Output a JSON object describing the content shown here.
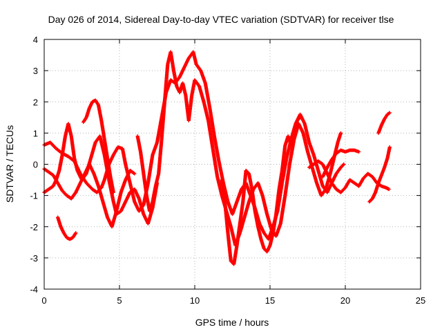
{
  "chart_data": {
    "type": "scatter",
    "title": "Day 026 of 2014, Sidereal Day-to-day VTEC variation (SDTVAR) for receiver tlse",
    "xlabel": "GPS time / hours",
    "ylabel": "SDTVAR / TECUs",
    "xlim": [
      0,
      25
    ],
    "ylim": [
      -4,
      4
    ],
    "xticks": [
      "0",
      "5",
      "10",
      "15",
      "20",
      "25"
    ],
    "yticks": [
      "4",
      "3",
      "2",
      "1",
      "0",
      "-1",
      "-2",
      "-3",
      "-4"
    ],
    "grid": true,
    "marker": "+",
    "series": [
      {
        "name": "SDTVAR",
        "color": "#ff0000",
        "tracks": [
          [
            [
              0,
              0.62
            ],
            [
              0.4,
              0.7
            ],
            [
              0.8,
              0.5
            ],
            [
              1.2,
              0.35
            ],
            [
              1.6,
              0.25
            ],
            [
              2.0,
              0.1
            ],
            [
              2.4,
              -0.3
            ],
            [
              2.8,
              -0.6
            ],
            [
              3.2,
              -0.8
            ],
            [
              3.5,
              -0.9
            ],
            [
              3.8,
              -0.75
            ],
            [
              4.0,
              -0.5
            ],
            [
              4.3,
              0.0
            ],
            [
              4.6,
              0.3
            ],
            [
              4.9,
              0.55
            ],
            [
              5.2,
              0.5
            ],
            [
              5.4,
              0.0
            ],
            [
              5.7,
              -0.6
            ],
            [
              6.0,
              -1.2
            ],
            [
              6.3,
              -1.5
            ],
            [
              6.6,
              -1.3
            ],
            [
              6.9,
              -0.6
            ],
            [
              7.2,
              0.3
            ],
            [
              7.5,
              0.7
            ],
            [
              7.8,
              1.5
            ],
            [
              8.1,
              2.3
            ],
            [
              8.4,
              2.7
            ],
            [
              8.7,
              2.6
            ],
            [
              9.0,
              2.8
            ],
            [
              9.3,
              3.1
            ],
            [
              9.6,
              3.4
            ],
            [
              9.9,
              3.6
            ],
            [
              10.1,
              3.2
            ],
            [
              10.4,
              3.0
            ],
            [
              10.7,
              2.6
            ],
            [
              11.0,
              1.8
            ],
            [
              11.3,
              0.9
            ],
            [
              11.6,
              0.1
            ],
            [
              11.9,
              -0.6
            ],
            [
              12.2,
              -1.2
            ],
            [
              12.5,
              -1.6
            ],
            [
              12.8,
              -1.2
            ],
            [
              13.1,
              -0.8
            ],
            [
              13.4,
              -0.6
            ],
            [
              13.7,
              -1.0
            ],
            [
              14.0,
              -1.4
            ],
            [
              14.3,
              -1.9
            ],
            [
              14.6,
              -2.2
            ],
            [
              14.9,
              -2.4
            ],
            [
              15.2,
              -2.0
            ],
            [
              15.5,
              -1.5
            ],
            [
              15.8,
              -0.6
            ],
            [
              16.1,
              0.2
            ],
            [
              16.4,
              0.8
            ],
            [
              16.7,
              1.3
            ],
            [
              17.0,
              1.6
            ],
            [
              17.3,
              1.3
            ],
            [
              17.6,
              0.7
            ],
            [
              17.9,
              0.3
            ],
            [
              18.2,
              -0.2
            ],
            [
              18.5,
              -0.7
            ],
            [
              18.8,
              -0.9
            ],
            [
              19.1,
              -0.6
            ],
            [
              19.4,
              -0.3
            ],
            [
              19.7,
              -0.1
            ],
            [
              19.9,
              0.0
            ]
          ],
          [
            [
              0,
              -0.9
            ],
            [
              0.3,
              -0.8
            ],
            [
              0.6,
              -0.7
            ],
            [
              0.8,
              -0.5
            ],
            [
              1.0,
              -0.2
            ],
            [
              1.2,
              0.3
            ],
            [
              1.4,
              0.9
            ],
            [
              1.6,
              1.3
            ],
            [
              1.8,
              0.9
            ],
            [
              2.0,
              0.2
            ],
            [
              2.2,
              -0.2
            ],
            [
              2.5,
              -0.5
            ],
            [
              2.8,
              -0.3
            ],
            [
              3.1,
              0.2
            ],
            [
              3.4,
              0.7
            ],
            [
              3.7,
              0.9
            ],
            [
              4.0,
              0.3
            ],
            [
              4.3,
              -0.5
            ],
            [
              4.6,
              -1.2
            ],
            [
              4.8,
              -1.6
            ],
            [
              5.1,
              -1.5
            ],
            [
              5.4,
              -1.2
            ],
            [
              5.7,
              -0.9
            ],
            [
              6.0,
              -0.8
            ],
            [
              6.3,
              -1.1
            ],
            [
              6.6,
              -1.6
            ],
            [
              6.9,
              -1.9
            ],
            [
              7.2,
              -1.4
            ],
            [
              7.5,
              -0.6
            ]
          ],
          [
            [
              0,
              -0.15
            ],
            [
              0.3,
              -0.25
            ],
            [
              0.6,
              -0.35
            ],
            [
              0.9,
              -0.6
            ],
            [
              1.2,
              -0.85
            ],
            [
              1.5,
              -1.0
            ],
            [
              1.8,
              -1.1
            ],
            [
              2.1,
              -0.9
            ],
            [
              2.4,
              -0.6
            ],
            [
              2.7,
              -0.3
            ],
            [
              3.0,
              0.0
            ],
            [
              3.3,
              -0.3
            ],
            [
              3.6,
              -0.7
            ],
            [
              3.9,
              -1.2
            ],
            [
              4.2,
              -1.7
            ],
            [
              4.5,
              -2.0
            ],
            [
              4.8,
              -1.5
            ],
            [
              5.1,
              -0.9
            ],
            [
              5.4,
              -0.5
            ],
            [
              5.7,
              -0.2
            ],
            [
              6.0,
              -0.3
            ]
          ],
          [
            [
              0.9,
              -1.7
            ],
            [
              1.1,
              -2.0
            ],
            [
              1.3,
              -2.2
            ],
            [
              1.5,
              -2.35
            ],
            [
              1.7,
              -2.4
            ],
            [
              1.9,
              -2.35
            ],
            [
              2.1,
              -2.2
            ]
          ],
          [
            [
              2.6,
              1.35
            ],
            [
              2.8,
              1.5
            ],
            [
              3.0,
              1.8
            ],
            [
              3.2,
              2.0
            ],
            [
              3.4,
              2.05
            ],
            [
              3.6,
              1.9
            ],
            [
              3.8,
              1.4
            ],
            [
              4.0,
              0.8
            ],
            [
              4.2,
              0.2
            ],
            [
              4.4,
              -0.4
            ],
            [
              4.6,
              -0.9
            ]
          ],
          [
            [
              6.2,
              0.9
            ],
            [
              6.4,
              0.4
            ],
            [
              6.6,
              -0.3
            ],
            [
              6.8,
              -1.0
            ],
            [
              7.0,
              -1.5
            ],
            [
              7.2,
              -1.2
            ],
            [
              7.4,
              -0.7
            ],
            [
              7.6,
              -0.3
            ],
            [
              7.8,
              0.8
            ],
            [
              8.0,
              2.0
            ],
            [
              8.2,
              3.2
            ],
            [
              8.4,
              3.6
            ],
            [
              8.6,
              3.0
            ],
            [
              8.8,
              2.5
            ],
            [
              9.0,
              2.3
            ],
            [
              9.2,
              2.6
            ],
            [
              9.4,
              2.2
            ],
            [
              9.6,
              1.4
            ],
            [
              9.8,
              2.2
            ],
            [
              10.0,
              2.7
            ],
            [
              10.3,
              2.5
            ],
            [
              10.6,
              2.0
            ],
            [
              10.9,
              1.4
            ],
            [
              11.2,
              0.5
            ],
            [
              11.5,
              -0.4
            ],
            [
              11.8,
              -1.0
            ],
            [
              12.1,
              -1.5
            ],
            [
              12.4,
              -2.0
            ],
            [
              12.7,
              -2.6
            ],
            [
              13.0,
              -2.2
            ],
            [
              13.3,
              -1.7
            ],
            [
              13.6,
              -1.2
            ],
            [
              13.9,
              -0.8
            ],
            [
              14.2,
              -0.6
            ],
            [
              14.5,
              -1.0
            ],
            [
              14.8,
              -1.6
            ],
            [
              15.1,
              -2.1
            ],
            [
              15.4,
              -2.3
            ],
            [
              15.7,
              -1.9
            ],
            [
              16.0,
              -1.0
            ],
            [
              16.3,
              0.0
            ],
            [
              16.6,
              0.8
            ],
            [
              16.9,
              1.3
            ],
            [
              17.2,
              1.0
            ],
            [
              17.5,
              0.4
            ],
            [
              17.8,
              -0.1
            ],
            [
              18.1,
              -0.6
            ],
            [
              18.4,
              -1.0
            ],
            [
              18.7,
              -0.8
            ],
            [
              19.0,
              -0.3
            ],
            [
              19.3,
              0.3
            ],
            [
              19.5,
              0.7
            ],
            [
              19.7,
              1.0
            ]
          ],
          [
            [
              11.8,
              -0.5
            ],
            [
              12.0,
              -1.2
            ],
            [
              12.2,
              -2.2
            ],
            [
              12.4,
              -3.1
            ],
            [
              12.6,
              -3.2
            ],
            [
              12.8,
              -2.6
            ],
            [
              13.0,
              -1.9
            ],
            [
              13.2,
              -1.2
            ],
            [
              13.4,
              -0.2
            ],
            [
              13.6,
              -0.3
            ],
            [
              13.8,
              -0.8
            ],
            [
              14.0,
              -1.5
            ],
            [
              14.2,
              -2.0
            ],
            [
              14.4,
              -2.4
            ],
            [
              14.6,
              -2.7
            ],
            [
              14.8,
              -2.8
            ],
            [
              15.0,
              -2.6
            ],
            [
              15.2,
              -2.2
            ],
            [
              15.4,
              -1.6
            ],
            [
              15.6,
              -0.8
            ],
            [
              15.8,
              -0.2
            ],
            [
              16.0,
              0.6
            ],
            [
              16.2,
              0.9
            ],
            [
              16.4,
              0.6
            ],
            [
              16.6,
              0.9
            ],
            [
              16.8,
              1.4
            ],
            [
              17.0,
              1.5
            ]
          ],
          [
            [
              17.6,
              -0.1
            ],
            [
              17.9,
              0.0
            ],
            [
              18.2,
              0.1
            ],
            [
              18.5,
              0.0
            ],
            [
              18.8,
              -0.3
            ],
            [
              19.1,
              -0.6
            ],
            [
              19.4,
              -0.8
            ],
            [
              19.7,
              -0.9
            ],
            [
              20.0,
              -0.75
            ],
            [
              20.3,
              -0.5
            ],
            [
              20.6,
              -0.6
            ],
            [
              20.9,
              -0.7
            ],
            [
              21.2,
              -0.45
            ],
            [
              21.5,
              -0.3
            ],
            [
              21.8,
              -0.4
            ],
            [
              22.1,
              -0.6
            ],
            [
              22.4,
              -0.7
            ],
            [
              22.7,
              -0.75
            ],
            [
              22.9,
              -0.8
            ]
          ],
          [
            [
              18.5,
              -0.4
            ],
            [
              18.8,
              -0.1
            ],
            [
              19.1,
              0.15
            ],
            [
              19.4,
              0.35
            ],
            [
              19.7,
              0.45
            ],
            [
              20.0,
              0.4
            ],
            [
              20.3,
              0.45
            ],
            [
              20.6,
              0.45
            ],
            [
              20.9,
              0.4
            ]
          ],
          [
            [
              21.6,
              -1.2
            ],
            [
              21.8,
              -1.1
            ],
            [
              22.0,
              -0.9
            ],
            [
              22.2,
              -0.6
            ],
            [
              22.4,
              -0.35
            ],
            [
              22.6,
              -0.1
            ],
            [
              22.8,
              0.2
            ],
            [
              22.95,
              0.55
            ]
          ],
          [
            [
              22.2,
              1.0
            ],
            [
              22.4,
              1.25
            ],
            [
              22.6,
              1.45
            ],
            [
              22.8,
              1.6
            ],
            [
              22.95,
              1.65
            ]
          ]
        ]
      }
    ]
  }
}
